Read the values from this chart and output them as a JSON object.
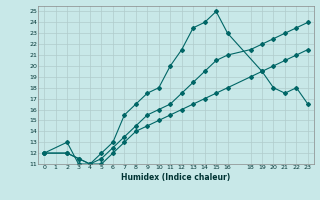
{
  "xlabel": "Humidex (Indice chaleur)",
  "background_color": "#c8e8e8",
  "grid_color": "#b0cccc",
  "line_color": "#006666",
  "xlim": [
    -0.5,
    23.5
  ],
  "ylim": [
    11,
    25.5
  ],
  "xticks": [
    0,
    1,
    2,
    3,
    4,
    5,
    6,
    7,
    8,
    9,
    10,
    11,
    12,
    13,
    14,
    15,
    16,
    18,
    19,
    20,
    21,
    22,
    23
  ],
  "yticks": [
    11,
    12,
    13,
    14,
    15,
    16,
    17,
    18,
    19,
    20,
    21,
    22,
    23,
    24,
    25
  ],
  "line1_x": [
    0,
    2,
    3,
    4,
    5,
    6,
    7,
    8,
    9,
    10,
    11,
    12,
    13,
    14,
    15,
    16,
    19,
    20,
    21,
    22,
    23
  ],
  "line1_y": [
    12,
    13,
    11,
    11,
    12,
    13,
    15.5,
    16.5,
    17.5,
    18,
    20,
    21.5,
    23.5,
    24,
    25,
    23,
    19.5,
    18,
    17.5,
    18,
    16.5
  ],
  "line2_x": [
    0,
    2,
    3,
    4,
    5,
    6,
    7,
    8,
    9,
    10,
    11,
    12,
    13,
    14,
    15,
    16,
    18,
    19,
    20,
    21,
    22,
    23
  ],
  "line2_y": [
    12,
    12,
    11.5,
    11,
    11.5,
    12.5,
    13.5,
    14.5,
    15.5,
    16,
    16.5,
    17.5,
    18.5,
    19.5,
    20.5,
    21,
    21.5,
    22,
    22.5,
    23,
    23.5,
    24
  ],
  "line3_x": [
    0,
    2,
    3,
    4,
    5,
    6,
    7,
    8,
    9,
    10,
    11,
    12,
    13,
    14,
    15,
    16,
    18,
    19,
    20,
    21,
    22,
    23
  ],
  "line3_y": [
    12,
    12,
    11.5,
    11,
    11,
    12,
    13,
    14,
    14.5,
    15,
    15.5,
    16,
    16.5,
    17,
    17.5,
    18,
    19,
    19.5,
    20,
    20.5,
    21,
    21.5
  ]
}
